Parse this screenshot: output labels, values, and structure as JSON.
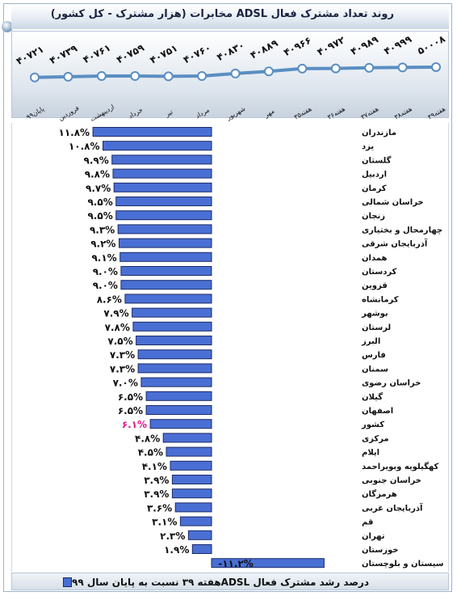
{
  "title": "روند تعداد مشترک فعال ADSL مخابرات (هزار مشترک - کل کشور)",
  "legend_label": "درصد رشد مشترک فعال ADSLهفته ۳۹ نسبت به پایان سال ۹۹",
  "colors": {
    "bar_fill": "#4a6fd4",
    "bar_stroke": "#1b2a66",
    "line": "#5a8ec2",
    "highlight_text": "#e0198b",
    "text": "#111111"
  },
  "chart_data": [
    {
      "type": "line",
      "title": "روند تعداد مشترک فعال ADSL مخابرات (هزار مشترک - کل کشور)",
      "categories": [
        "پایان۹۹",
        "فروردین",
        "اردیبهشت",
        "خرداد",
        "تیر",
        "مرداد",
        "شهریور",
        "مهر",
        "هفته۳۵",
        "هفته۳۶",
        "هفته۳۷",
        "هفته۳۸",
        "هفته۳۹"
      ],
      "value_labels": [
        "۴۰۷۲۱",
        "۴۰۷۳۹",
        "۴۰۷۶۱",
        "۴۰۷۵۹",
        "۴۰۷۵۱",
        "۴۰۷۶۰",
        "۴۰۸۳۰",
        "۴۰۸۸۹",
        "۴۰۹۶۶",
        "۴۰۹۷۲",
        "۴۰۹۸۹",
        "۴۰۹۹۹",
        "۵۰۰۰۸"
      ],
      "values": [
        4721,
        4739,
        4761,
        4759,
        4751,
        4760,
        4830,
        4889,
        4966,
        4972,
        4989,
        4999,
        5008
      ],
      "ylim": [
        4400,
        5300
      ]
    },
    {
      "type": "bar",
      "orientation": "horizontal",
      "legend": "درصد رشد مشترک فعال ADSLهفته ۳۹ نسبت به پایان سال ۹۹",
      "categories": [
        "مازندران",
        "یزد",
        "گلستان",
        "اردبیل",
        "کرمان",
        "خراسان شمالی",
        "زنجان",
        "چهارمحال و بختیاری",
        "آذربایجان شرقی",
        "همدان",
        "کردستان",
        "قزوین",
        "کرمانشاه",
        "بوشهر",
        "لرستان",
        "البرز",
        "فارس",
        "سمنان",
        "خراسان رضوی",
        "گیلان",
        "اصفهان",
        "کشور",
        "مرکزی",
        "ایلام",
        "کهگیلویه وبویراحمد",
        "خراسان جنوبی",
        "هرمزگان",
        "آذربایجان غربی",
        "قم",
        "تهران",
        "خوزستان",
        "سیستان و بلوچستان"
      ],
      "values": [
        11.8,
        10.8,
        9.9,
        9.8,
        9.7,
        9.5,
        9.5,
        9.3,
        9.2,
        9.1,
        9.0,
        9.0,
        8.6,
        7.9,
        7.8,
        7.5,
        7.3,
        7.3,
        7.0,
        6.5,
        6.5,
        6.1,
        4.8,
        4.5,
        4.1,
        3.9,
        3.9,
        3.6,
        3.1,
        2.3,
        1.9,
        -11.2
      ],
      "value_labels": [
        "۱۱.۸%",
        "۱۰.۸%",
        "۹.۹%",
        "۹.۸%",
        "۹.۷%",
        "۹.۵%",
        "۹.۵%",
        "۹.۳%",
        "۹.۲%",
        "۹.۱%",
        "۹.۰%",
        "۹.۰%",
        "۸.۶%",
        "۷.۹%",
        "۷.۸%",
        "۷.۵%",
        "۷.۳%",
        "۷.۳%",
        "۷.۰%",
        "۶.۵%",
        "۶.۵%",
        "۶.۱%",
        "۴.۸%",
        "۴.۵%",
        "۴.۱%",
        "۳.۹%",
        "۳.۹%",
        "۳.۶%",
        "۳.۱%",
        "۲.۳%",
        "۱.۹%",
        "-۱۱.۲%"
      ],
      "highlight_category": "کشور"
    }
  ]
}
